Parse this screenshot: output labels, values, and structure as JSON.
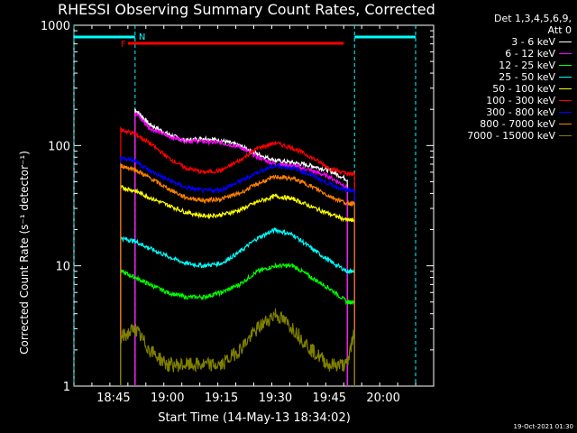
{
  "chart_data": {
    "type": "line",
    "title": "RHESSI Observing Summary Count Rates, Corrected",
    "xlabel": "Start Time (14-May-13 18:34:02)",
    "ylabel": "Corrected Count Rate (s⁻¹ detector⁻¹)",
    "x_scale": "time",
    "y_scale": "log",
    "xlim": [
      "18:34",
      "20:14"
    ],
    "ylim": [
      1,
      1000
    ],
    "x_ticks": [
      "18:45",
      "19:00",
      "19:15",
      "19:30",
      "19:45",
      "20:00"
    ],
    "y_ticks": [
      "1",
      "10",
      "100",
      "1000"
    ],
    "legend_header": [
      "Det 1,3,4,5,6,9,",
      "Att 0"
    ],
    "legend_position": "right, outside plot",
    "flag_labels": {
      "N": "N",
      "F": "F"
    },
    "night_intervals": [
      [
        "18:34",
        "18:51"
      ],
      [
        "19:52",
        "20:10"
      ]
    ],
    "flare_interval": [
      "18:49",
      "19:49"
    ],
    "data_gaps": [
      [
        "18:34",
        "18:47"
      ],
      [
        "19:52",
        "20:14"
      ]
    ],
    "x_samples": [
      "18:47",
      "18:51",
      "18:55",
      "19:00",
      "19:05",
      "19:10",
      "19:15",
      "19:20",
      "19:25",
      "19:30",
      "19:35",
      "19:40",
      "19:45",
      "19:50",
      "19:52"
    ],
    "series": [
      {
        "name": "3 - 6 keV",
        "color": "#ffffff",
        "values": [
          null,
          200,
          150,
          125,
          110,
          115,
          110,
          100,
          85,
          75,
          72,
          68,
          62,
          52,
          null
        ]
      },
      {
        "name": "6 - 12 keV",
        "color": "#ff00ff",
        "values": [
          null,
          190,
          140,
          120,
          110,
          108,
          105,
          98,
          80,
          70,
          68,
          62,
          55,
          45,
          null
        ]
      },
      {
        "name": "12 - 25 keV",
        "color": "#00ff00",
        "values": [
          9,
          8,
          7,
          6,
          5.5,
          5.5,
          6,
          7,
          9,
          10,
          10,
          8,
          6.5,
          5,
          5
        ]
      },
      {
        "name": "25 - 50 keV",
        "color": "#00ffff",
        "values": [
          17,
          16,
          14,
          12,
          10.5,
          10,
          10.5,
          13,
          17,
          20,
          18,
          14,
          11,
          9,
          9
        ]
      },
      {
        "name": "50 - 100 keV",
        "color": "#ffff00",
        "values": [
          45,
          42,
          37,
          32,
          28,
          26,
          26.5,
          29,
          34,
          38,
          36,
          31,
          27,
          24,
          24
        ]
      },
      {
        "name": "100 - 300 keV",
        "color": "#ff0000",
        "values": [
          135,
          125,
          105,
          80,
          65,
          60,
          62,
          75,
          95,
          105,
          95,
          80,
          65,
          58,
          58
        ]
      },
      {
        "name": "300 - 800 keV",
        "color": "#0000ff",
        "values": [
          80,
          75,
          62,
          52,
          45,
          42,
          43,
          50,
          60,
          68,
          65,
          57,
          48,
          42,
          42
        ]
      },
      {
        "name": "800 - 7000 keV",
        "color": "#ff8000",
        "values": [
          68,
          63,
          54,
          44,
          37,
          35,
          36,
          40,
          48,
          55,
          53,
          46,
          38,
          33,
          33
        ]
      },
      {
        "name": "7000 - 15000 keV",
        "color": "#808000",
        "values": [
          2.5,
          3,
          2,
          1.5,
          1.5,
          1.5,
          1.5,
          2,
          3,
          4,
          3,
          2,
          1.5,
          1.5,
          3
        ]
      }
    ]
  },
  "footer": {
    "timestamp": "19-Oct-2021 01:30"
  }
}
